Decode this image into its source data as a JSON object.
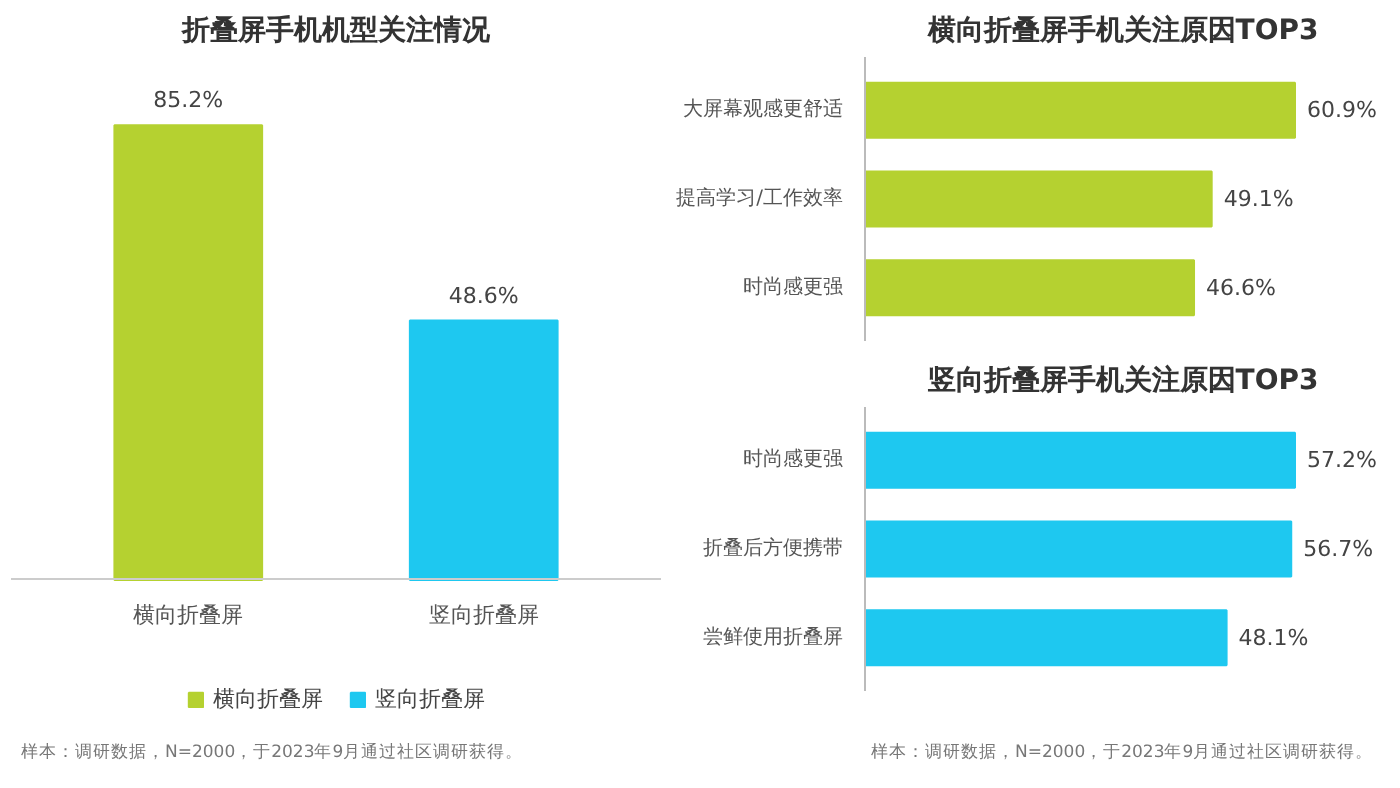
{
  "chart_data": [
    {
      "type": "bar",
      "title": "折叠屏手机机型关注情况",
      "categories": [
        "横向折叠屏",
        "竖向折叠屏"
      ],
      "series": [
        {
          "name": "横向折叠屏",
          "color": "#b5d130",
          "values": [
            85.2,
            null
          ],
          "value_labels": [
            "85.2%",
            null
          ]
        },
        {
          "name": "竖向折叠屏",
          "color": "#1ec8f0",
          "values": [
            null,
            48.6
          ],
          "value_labels": [
            null,
            "48.6%"
          ]
        }
      ],
      "legend": "bottom",
      "grid": false,
      "tick_labels": "x",
      "annotations": [
        "样本：调研数据，N=2000，于2023年9月通过社区调研获得。"
      ]
    },
    {
      "type": "bar",
      "orientation": "horizontal",
      "title": "横向折叠屏手机关注原因TOP3",
      "categories": [
        "大屏幕观感更舒适",
        "提高学习/工作效率",
        "时尚感更强"
      ],
      "values": [
        60.9,
        49.1,
        46.6
      ],
      "colors": [
        "#b5d130",
        "#b5d130",
        "#b5d130"
      ],
      "value_labels": [
        "60.9%",
        "49.1%",
        "46.6%"
      ],
      "grid": false,
      "tick_labels": "y"
    },
    {
      "type": "bar",
      "orientation": "horizontal",
      "title": "竖向折叠屏手机关注原因TOP3",
      "categories": [
        "时尚感更强",
        "折叠后方便携带",
        "尝鲜使用折叠屏"
      ],
      "values": [
        57.2,
        56.7,
        48.1
      ],
      "colors": [
        "#1ec8f0",
        "#1ec8f0",
        "#1ec8f0"
      ],
      "value_labels": [
        "57.2%",
        "56.7%",
        "48.1%"
      ],
      "grid": false,
      "tick_labels": "y",
      "annotations": [
        "样本：调研数据，N=2000，于2023年9月通过社区调研获得。"
      ]
    }
  ]
}
